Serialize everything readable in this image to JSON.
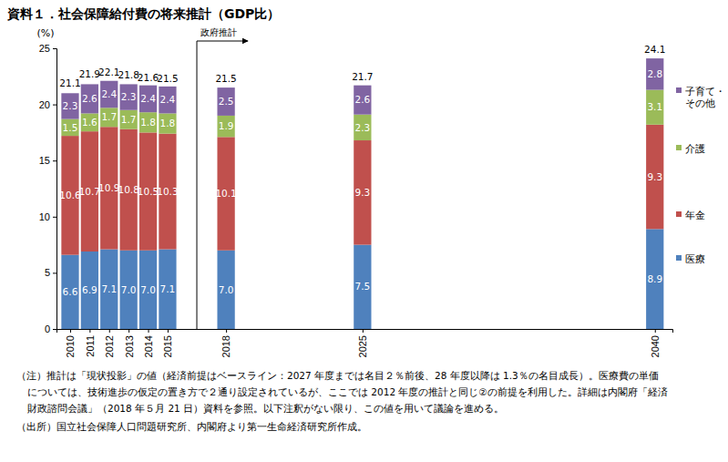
{
  "chart_data": {
    "type": "bar",
    "title": "資料１．社会保障給付費の将来推計（GDP比）",
    "y_unit_label": "(%)",
    "x": [
      2010,
      2011,
      2012,
      2013,
      2014,
      2015,
      2018,
      2025,
      2040
    ],
    "xlim": [
      2009.3,
      2040.9
    ],
    "xticks": [
      2010,
      2011,
      2012,
      2013,
      2014,
      2015,
      2018,
      2025,
      2040
    ],
    "ylim": [
      0,
      25
    ],
    "yticks": [
      0,
      5,
      10,
      15,
      20,
      25
    ],
    "stacked": true,
    "data_labels": true,
    "legend": "right",
    "series": [
      {
        "name": "医療",
        "color": "#4f81bd",
        "values": [
          6.6,
          6.9,
          7.1,
          7.0,
          7.0,
          7.1,
          7.0,
          7.5,
          8.9
        ],
        "value_labels": [
          "6.6",
          "6.9",
          "7.1",
          "7.0",
          "7.0",
          "7.1",
          "7.0",
          "7.5",
          "8.9"
        ]
      },
      {
        "name": "年金",
        "color": "#c0504d",
        "values": [
          10.6,
          10.7,
          10.9,
          10.8,
          10.5,
          10.3,
          10.1,
          9.3,
          9.3
        ],
        "value_labels": [
          "10.6",
          "10.7",
          "10.9",
          "10.8",
          "10.5",
          "10.3",
          "10.1",
          "9.3",
          "9.3"
        ]
      },
      {
        "name": "介護",
        "color": "#9bbb59",
        "values": [
          1.5,
          1.6,
          1.7,
          1.7,
          1.8,
          1.8,
          1.9,
          2.3,
          3.1
        ],
        "value_labels": [
          "1.5",
          "1.6",
          "1.7",
          "1.7",
          "1.8",
          "1.8",
          "1.9",
          "2.3",
          "3.1"
        ]
      },
      {
        "name": "子育て・その他",
        "color": "#8064a2",
        "values": [
          2.3,
          2.6,
          2.4,
          2.3,
          2.4,
          2.4,
          2.5,
          2.6,
          2.8
        ],
        "value_labels": [
          "2.3",
          "2.6",
          "2.4",
          "2.3",
          "2.4",
          "2.4",
          "2.5",
          "2.6",
          "2.8"
        ]
      }
    ],
    "totals": [
      21.1,
      21.9,
      22.1,
      21.8,
      21.6,
      21.5,
      21.5,
      21.7,
      24.1
    ],
    "annotations": [
      {
        "text": "政府推計",
        "x": 2016.5
      }
    ],
    "notes": [
      "（注）推計は「現状投影」の値（経済前提はベースライン：2027 年度までは名目２％前後、28 年度以降は 1.3％の名目成長）。医療費の単価",
      "については、技術進歩の仮定の置き方で２通り設定されているが、ここでは 2012 年度の推計と同じ②の前提を利用した。詳細は内閣府「経済",
      "財政諮問会議」（2018 年５月 21 日）資料を参照。以下注釈がない限り、この値を用いて議論を進める。",
      "（出所）国立社会保障人口問題研究所、内閣府より第一生命経済研究所作成。"
    ]
  }
}
